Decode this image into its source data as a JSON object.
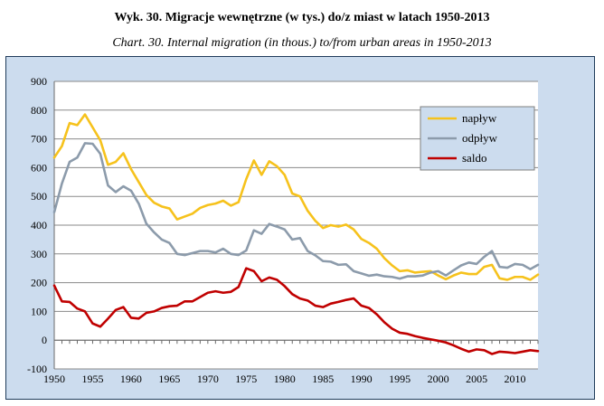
{
  "title_pl": "Wyk.  30. Migracje wewnętrzne (w tys.) do/z miast w latach 1950-2013",
  "title_en": "Chart. 30. Internal migration (in thous.) to/from urban areas in 1950-2013",
  "chart_data": {
    "type": "line",
    "ylim": [
      -100,
      900
    ],
    "yticks": [
      -100,
      0,
      100,
      200,
      300,
      400,
      500,
      600,
      700,
      800,
      900
    ],
    "xlim": [
      1950,
      2013
    ],
    "xticks": [
      1950,
      1955,
      1960,
      1965,
      1970,
      1975,
      1980,
      1985,
      1990,
      1995,
      2000,
      2005,
      2010
    ],
    "grid": true,
    "legend_position": "top-right",
    "x": [
      1950,
      1951,
      1952,
      1953,
      1954,
      1955,
      1956,
      1957,
      1958,
      1959,
      1960,
      1961,
      1962,
      1963,
      1964,
      1965,
      1966,
      1967,
      1968,
      1969,
      1970,
      1971,
      1972,
      1973,
      1974,
      1975,
      1976,
      1977,
      1978,
      1979,
      1980,
      1981,
      1982,
      1983,
      1984,
      1985,
      1986,
      1987,
      1988,
      1989,
      1990,
      1991,
      1992,
      1993,
      1994,
      1995,
      1996,
      1997,
      1998,
      1999,
      2000,
      2001,
      2002,
      2003,
      2004,
      2005,
      2006,
      2007,
      2008,
      2009,
      2010,
      2011,
      2012,
      2013
    ],
    "series": [
      {
        "name": "napływ",
        "color": "#f6c21c",
        "values": [
          635,
          675,
          755,
          748,
          785,
          740,
          695,
          610,
          620,
          650,
          595,
          550,
          505,
          478,
          465,
          458,
          420,
          430,
          440,
          460,
          470,
          475,
          485,
          468,
          480,
          560,
          625,
          575,
          622,
          605,
          575,
          510,
          500,
          450,
          415,
          390,
          400,
          395,
          402,
          385,
          352,
          338,
          318,
          285,
          260,
          240,
          243,
          235,
          238,
          240,
          225,
          212,
          225,
          235,
          230,
          230,
          255,
          262,
          215,
          210,
          220,
          220,
          210,
          228
        ],
        "dasharray": ""
      },
      {
        "name": "odpływ",
        "color": "#8c9bab",
        "values": [
          445,
          545,
          620,
          635,
          685,
          683,
          648,
          538,
          515,
          535,
          520,
          475,
          405,
          375,
          350,
          338,
          300,
          296,
          303,
          310,
          310,
          305,
          318,
          300,
          296,
          312,
          382,
          370,
          404,
          395,
          385,
          350,
          355,
          310,
          295,
          275,
          273,
          262,
          264,
          240,
          232,
          224,
          228,
          222,
          220,
          214,
          222,
          222,
          225,
          235,
          240,
          225,
          243,
          260,
          270,
          265,
          290,
          310,
          255,
          252,
          265,
          262,
          247,
          262
        ],
        "dasharray": ""
      },
      {
        "name": "saldo",
        "color": "#c00000",
        "values": [
          190,
          135,
          133,
          110,
          100,
          58,
          47,
          75,
          105,
          115,
          78,
          75,
          95,
          100,
          112,
          118,
          120,
          135,
          135,
          150,
          165,
          170,
          165,
          168,
          185,
          250,
          240,
          205,
          218,
          210,
          188,
          160,
          145,
          138,
          120,
          115,
          127,
          133,
          140,
          145,
          120,
          112,
          90,
          62,
          40,
          26,
          22,
          14,
          8,
          3,
          -2,
          -8,
          -18,
          -30,
          -40,
          -32,
          -35,
          -48,
          -40,
          -42,
          -45,
          -40,
          -35,
          -38
        ],
        "dasharray": ""
      }
    ]
  }
}
